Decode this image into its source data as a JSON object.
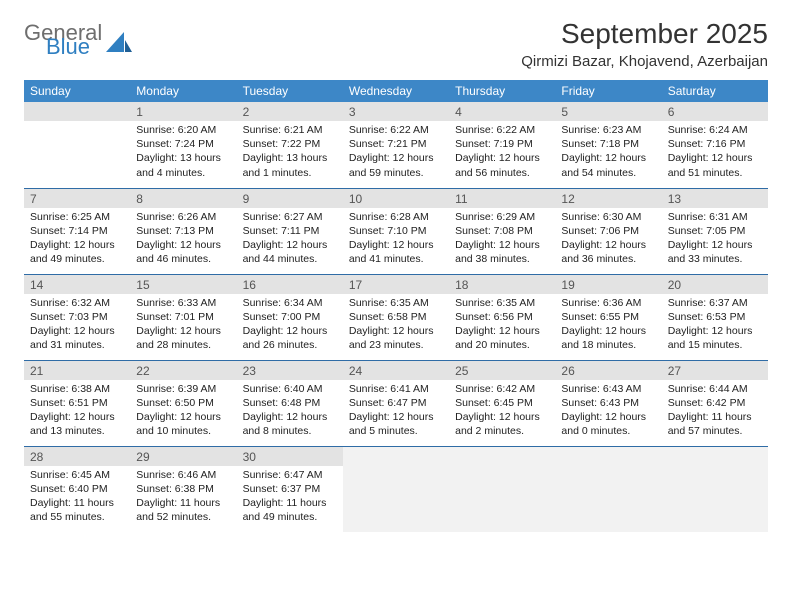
{
  "logo": {
    "general": "General",
    "blue": "Blue"
  },
  "title": "September 2025",
  "location": "Qirmizi Bazar, Khojavend, Azerbaijan",
  "colors": {
    "header_bg": "#3d87c7",
    "header_text": "#ffffff",
    "daynum_bg": "#e3e3e3",
    "border": "#2f6ca6",
    "logo_gray": "#6e6e6e",
    "logo_blue": "#2f7fc1"
  },
  "weekdays": [
    "Sunday",
    "Monday",
    "Tuesday",
    "Wednesday",
    "Thursday",
    "Friday",
    "Saturday"
  ],
  "weeks": [
    [
      {
        "n": "",
        "lines": []
      },
      {
        "n": "1",
        "lines": [
          "Sunrise: 6:20 AM",
          "Sunset: 7:24 PM",
          "Daylight: 13 hours",
          "and 4 minutes."
        ]
      },
      {
        "n": "2",
        "lines": [
          "Sunrise: 6:21 AM",
          "Sunset: 7:22 PM",
          "Daylight: 13 hours",
          "and 1 minutes."
        ]
      },
      {
        "n": "3",
        "lines": [
          "Sunrise: 6:22 AM",
          "Sunset: 7:21 PM",
          "Daylight: 12 hours",
          "and 59 minutes."
        ]
      },
      {
        "n": "4",
        "lines": [
          "Sunrise: 6:22 AM",
          "Sunset: 7:19 PM",
          "Daylight: 12 hours",
          "and 56 minutes."
        ]
      },
      {
        "n": "5",
        "lines": [
          "Sunrise: 6:23 AM",
          "Sunset: 7:18 PM",
          "Daylight: 12 hours",
          "and 54 minutes."
        ]
      },
      {
        "n": "6",
        "lines": [
          "Sunrise: 6:24 AM",
          "Sunset: 7:16 PM",
          "Daylight: 12 hours",
          "and 51 minutes."
        ]
      }
    ],
    [
      {
        "n": "7",
        "lines": [
          "Sunrise: 6:25 AM",
          "Sunset: 7:14 PM",
          "Daylight: 12 hours",
          "and 49 minutes."
        ]
      },
      {
        "n": "8",
        "lines": [
          "Sunrise: 6:26 AM",
          "Sunset: 7:13 PM",
          "Daylight: 12 hours",
          "and 46 minutes."
        ]
      },
      {
        "n": "9",
        "lines": [
          "Sunrise: 6:27 AM",
          "Sunset: 7:11 PM",
          "Daylight: 12 hours",
          "and 44 minutes."
        ]
      },
      {
        "n": "10",
        "lines": [
          "Sunrise: 6:28 AM",
          "Sunset: 7:10 PM",
          "Daylight: 12 hours",
          "and 41 minutes."
        ]
      },
      {
        "n": "11",
        "lines": [
          "Sunrise: 6:29 AM",
          "Sunset: 7:08 PM",
          "Daylight: 12 hours",
          "and 38 minutes."
        ]
      },
      {
        "n": "12",
        "lines": [
          "Sunrise: 6:30 AM",
          "Sunset: 7:06 PM",
          "Daylight: 12 hours",
          "and 36 minutes."
        ]
      },
      {
        "n": "13",
        "lines": [
          "Sunrise: 6:31 AM",
          "Sunset: 7:05 PM",
          "Daylight: 12 hours",
          "and 33 minutes."
        ]
      }
    ],
    [
      {
        "n": "14",
        "lines": [
          "Sunrise: 6:32 AM",
          "Sunset: 7:03 PM",
          "Daylight: 12 hours",
          "and 31 minutes."
        ]
      },
      {
        "n": "15",
        "lines": [
          "Sunrise: 6:33 AM",
          "Sunset: 7:01 PM",
          "Daylight: 12 hours",
          "and 28 minutes."
        ]
      },
      {
        "n": "16",
        "lines": [
          "Sunrise: 6:34 AM",
          "Sunset: 7:00 PM",
          "Daylight: 12 hours",
          "and 26 minutes."
        ]
      },
      {
        "n": "17",
        "lines": [
          "Sunrise: 6:35 AM",
          "Sunset: 6:58 PM",
          "Daylight: 12 hours",
          "and 23 minutes."
        ]
      },
      {
        "n": "18",
        "lines": [
          "Sunrise: 6:35 AM",
          "Sunset: 6:56 PM",
          "Daylight: 12 hours",
          "and 20 minutes."
        ]
      },
      {
        "n": "19",
        "lines": [
          "Sunrise: 6:36 AM",
          "Sunset: 6:55 PM",
          "Daylight: 12 hours",
          "and 18 minutes."
        ]
      },
      {
        "n": "20",
        "lines": [
          "Sunrise: 6:37 AM",
          "Sunset: 6:53 PM",
          "Daylight: 12 hours",
          "and 15 minutes."
        ]
      }
    ],
    [
      {
        "n": "21",
        "lines": [
          "Sunrise: 6:38 AM",
          "Sunset: 6:51 PM",
          "Daylight: 12 hours",
          "and 13 minutes."
        ]
      },
      {
        "n": "22",
        "lines": [
          "Sunrise: 6:39 AM",
          "Sunset: 6:50 PM",
          "Daylight: 12 hours",
          "and 10 minutes."
        ]
      },
      {
        "n": "23",
        "lines": [
          "Sunrise: 6:40 AM",
          "Sunset: 6:48 PM",
          "Daylight: 12 hours",
          "and 8 minutes."
        ]
      },
      {
        "n": "24",
        "lines": [
          "Sunrise: 6:41 AM",
          "Sunset: 6:47 PM",
          "Daylight: 12 hours",
          "and 5 minutes."
        ]
      },
      {
        "n": "25",
        "lines": [
          "Sunrise: 6:42 AM",
          "Sunset: 6:45 PM",
          "Daylight: 12 hours",
          "and 2 minutes."
        ]
      },
      {
        "n": "26",
        "lines": [
          "Sunrise: 6:43 AM",
          "Sunset: 6:43 PM",
          "Daylight: 12 hours",
          "and 0 minutes."
        ]
      },
      {
        "n": "27",
        "lines": [
          "Sunrise: 6:44 AM",
          "Sunset: 6:42 PM",
          "Daylight: 11 hours",
          "and 57 minutes."
        ]
      }
    ],
    [
      {
        "n": "28",
        "lines": [
          "Sunrise: 6:45 AM",
          "Sunset: 6:40 PM",
          "Daylight: 11 hours",
          "and 55 minutes."
        ]
      },
      {
        "n": "29",
        "lines": [
          "Sunrise: 6:46 AM",
          "Sunset: 6:38 PM",
          "Daylight: 11 hours",
          "and 52 minutes."
        ]
      },
      {
        "n": "30",
        "lines": [
          "Sunrise: 6:47 AM",
          "Sunset: 6:37 PM",
          "Daylight: 11 hours",
          "and 49 minutes."
        ]
      },
      {
        "n": "",
        "lines": [],
        "trailing": true
      },
      {
        "n": "",
        "lines": [],
        "trailing": true
      },
      {
        "n": "",
        "lines": [],
        "trailing": true
      },
      {
        "n": "",
        "lines": [],
        "trailing": true
      }
    ]
  ]
}
